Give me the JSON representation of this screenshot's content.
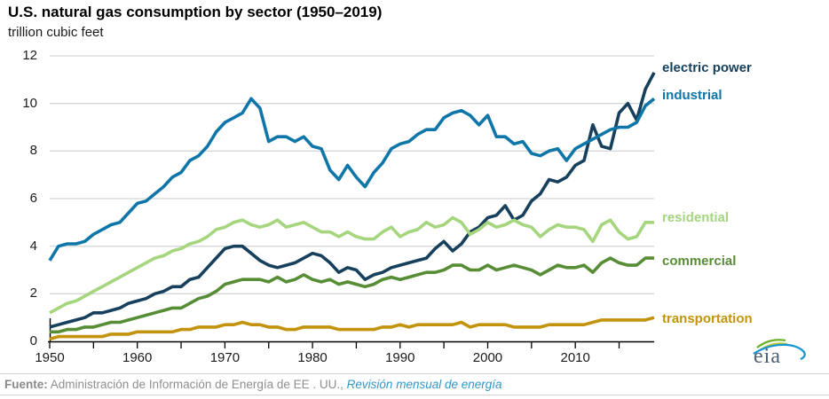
{
  "chart": {
    "title": "U.S. natural gas consumption by sector (1950–2019)",
    "subtitle": "trillion cubic feet"
  },
  "footer": {
    "source_label": "Fuente:",
    "source_text": " Administración de Información de Energía de EE . UU., ",
    "source_link": "Revisión mensual de energía"
  },
  "logo": {
    "text": "eia"
  },
  "colors": {
    "gridline": "#d6d6d6",
    "axis": "#000000",
    "tick_text": "#1a1a1a",
    "footer_text": "#8f8f8f",
    "footer_link": "#3396c9"
  },
  "chart_data": {
    "type": "line",
    "title": "U.S. natural gas consumption by sector (1950–2019)",
    "ylabel": "trillion cubic feet",
    "x_range": [
      1950,
      2019
    ],
    "ylim": [
      0,
      12
    ],
    "y_ticks": [
      0,
      2,
      4,
      6,
      8,
      10,
      12
    ],
    "x_tick_labels": [
      1950,
      1960,
      1970,
      1980,
      1990,
      2000,
      2010
    ],
    "minor_x_tick_step": 5,
    "grid": "horizontal",
    "legend_position": "right-edge-labels",
    "series": [
      {
        "name": "electric power",
        "color": "#17405c",
        "values": [
          0.6,
          0.7,
          0.8,
          0.9,
          1.0,
          1.2,
          1.2,
          1.3,
          1.4,
          1.6,
          1.7,
          1.8,
          2.0,
          2.1,
          2.3,
          2.3,
          2.6,
          2.7,
          3.1,
          3.5,
          3.9,
          4.0,
          4.0,
          3.7,
          3.4,
          3.2,
          3.1,
          3.2,
          3.3,
          3.5,
          3.7,
          3.6,
          3.3,
          2.9,
          3.1,
          3.0,
          2.6,
          2.8,
          2.9,
          3.1,
          3.2,
          3.3,
          3.4,
          3.5,
          3.9,
          4.2,
          3.8,
          4.1,
          4.6,
          4.8,
          5.2,
          5.3,
          5.7,
          5.1,
          5.3,
          5.9,
          6.2,
          6.8,
          6.7,
          6.9,
          7.4,
          7.6,
          9.1,
          8.2,
          8.1,
          9.6,
          10.0,
          9.3,
          10.6,
          11.3
        ]
      },
      {
        "name": "industrial",
        "color": "#0e76a8",
        "values": [
          3.4,
          4.0,
          4.1,
          4.1,
          4.2,
          4.5,
          4.7,
          4.9,
          5.0,
          5.4,
          5.8,
          5.9,
          6.2,
          6.5,
          6.9,
          7.1,
          7.6,
          7.8,
          8.2,
          8.8,
          9.2,
          9.4,
          9.6,
          10.2,
          9.8,
          8.4,
          8.6,
          8.6,
          8.4,
          8.6,
          8.2,
          8.1,
          7.2,
          6.8,
          7.4,
          6.9,
          6.5,
          7.1,
          7.5,
          8.1,
          8.3,
          8.4,
          8.7,
          8.9,
          8.9,
          9.4,
          9.6,
          9.7,
          9.5,
          9.1,
          9.5,
          8.6,
          8.6,
          8.3,
          8.4,
          7.9,
          7.8,
          8.0,
          8.1,
          7.6,
          8.1,
          8.3,
          8.5,
          8.7,
          8.9,
          9.0,
          9.0,
          9.2,
          9.9,
          10.2
        ]
      },
      {
        "name": "residential",
        "color": "#a5d57d",
        "values": [
          1.2,
          1.4,
          1.6,
          1.7,
          1.9,
          2.1,
          2.3,
          2.5,
          2.7,
          2.9,
          3.1,
          3.3,
          3.5,
          3.6,
          3.8,
          3.9,
          4.1,
          4.2,
          4.4,
          4.7,
          4.8,
          5.0,
          5.1,
          4.9,
          4.8,
          4.9,
          5.1,
          4.8,
          4.9,
          5.0,
          4.8,
          4.6,
          4.6,
          4.4,
          4.6,
          4.4,
          4.3,
          4.3,
          4.6,
          4.8,
          4.4,
          4.6,
          4.7,
          5.0,
          4.8,
          4.9,
          5.2,
          5.0,
          4.5,
          4.7,
          5.0,
          4.8,
          4.9,
          5.1,
          4.9,
          4.8,
          4.4,
          4.7,
          4.9,
          4.8,
          4.8,
          4.7,
          4.2,
          4.9,
          5.1,
          4.6,
          4.3,
          4.4,
          5.0,
          5.0
        ]
      },
      {
        "name": "commercial",
        "color": "#568d35",
        "values": [
          0.4,
          0.4,
          0.5,
          0.5,
          0.6,
          0.6,
          0.7,
          0.8,
          0.8,
          0.9,
          1.0,
          1.1,
          1.2,
          1.3,
          1.4,
          1.4,
          1.6,
          1.8,
          1.9,
          2.1,
          2.4,
          2.5,
          2.6,
          2.6,
          2.6,
          2.5,
          2.7,
          2.5,
          2.6,
          2.8,
          2.6,
          2.5,
          2.6,
          2.4,
          2.5,
          2.4,
          2.3,
          2.4,
          2.6,
          2.7,
          2.6,
          2.7,
          2.8,
          2.9,
          2.9,
          3.0,
          3.2,
          3.2,
          3.0,
          3.0,
          3.2,
          3.0,
          3.1,
          3.2,
          3.1,
          3.0,
          2.8,
          3.0,
          3.2,
          3.1,
          3.1,
          3.2,
          2.9,
          3.3,
          3.5,
          3.3,
          3.2,
          3.2,
          3.5,
          3.5
        ]
      },
      {
        "name": "transportation",
        "color": "#c3930d",
        "values": [
          0.1,
          0.2,
          0.2,
          0.2,
          0.2,
          0.2,
          0.2,
          0.3,
          0.3,
          0.3,
          0.4,
          0.4,
          0.4,
          0.4,
          0.4,
          0.5,
          0.5,
          0.6,
          0.6,
          0.6,
          0.7,
          0.7,
          0.8,
          0.7,
          0.7,
          0.6,
          0.6,
          0.5,
          0.5,
          0.6,
          0.6,
          0.6,
          0.6,
          0.5,
          0.5,
          0.5,
          0.5,
          0.5,
          0.6,
          0.6,
          0.7,
          0.6,
          0.7,
          0.7,
          0.7,
          0.7,
          0.7,
          0.8,
          0.6,
          0.7,
          0.7,
          0.7,
          0.7,
          0.6,
          0.6,
          0.6,
          0.6,
          0.7,
          0.7,
          0.7,
          0.7,
          0.7,
          0.8,
          0.9,
          0.9,
          0.9,
          0.9,
          0.9,
          0.9,
          1.0
        ]
      }
    ]
  }
}
